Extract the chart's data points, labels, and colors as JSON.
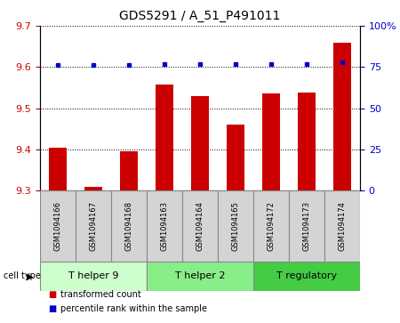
{
  "title": "GDS5291 / A_51_P491011",
  "samples": [
    "GSM1094166",
    "GSM1094167",
    "GSM1094168",
    "GSM1094163",
    "GSM1094164",
    "GSM1094165",
    "GSM1094172",
    "GSM1094173",
    "GSM1094174"
  ],
  "bar_values": [
    9.405,
    9.308,
    9.395,
    9.558,
    9.53,
    9.46,
    9.535,
    9.537,
    9.66
  ],
  "percentile_values": [
    76,
    76,
    76,
    77,
    77,
    77,
    77,
    77,
    78
  ],
  "ylim_left": [
    9.3,
    9.7
  ],
  "ylim_right": [
    0,
    100
  ],
  "yticks_left": [
    9.3,
    9.4,
    9.5,
    9.6,
    9.7
  ],
  "yticks_right": [
    0,
    25,
    50,
    75,
    100
  ],
  "ytick_labels_right": [
    "0",
    "25",
    "50",
    "75",
    "100%"
  ],
  "bar_color": "#cc0000",
  "dot_color": "#0000cc",
  "cell_groups": [
    {
      "label": "T helper 9",
      "start": 0,
      "end": 3,
      "color": "#ccffcc"
    },
    {
      "label": "T helper 2",
      "start": 3,
      "end": 6,
      "color": "#88ee88"
    },
    {
      "label": "T regulatory",
      "start": 6,
      "end": 9,
      "color": "#44cc44"
    }
  ],
  "sample_box_color": "#d4d4d4",
  "legend_labels": [
    "transformed count",
    "percentile rank within the sample"
  ],
  "cell_type_label": "cell type",
  "title_fontsize": 10,
  "tick_fontsize": 8,
  "sample_fontsize": 6,
  "group_fontsize": 8
}
